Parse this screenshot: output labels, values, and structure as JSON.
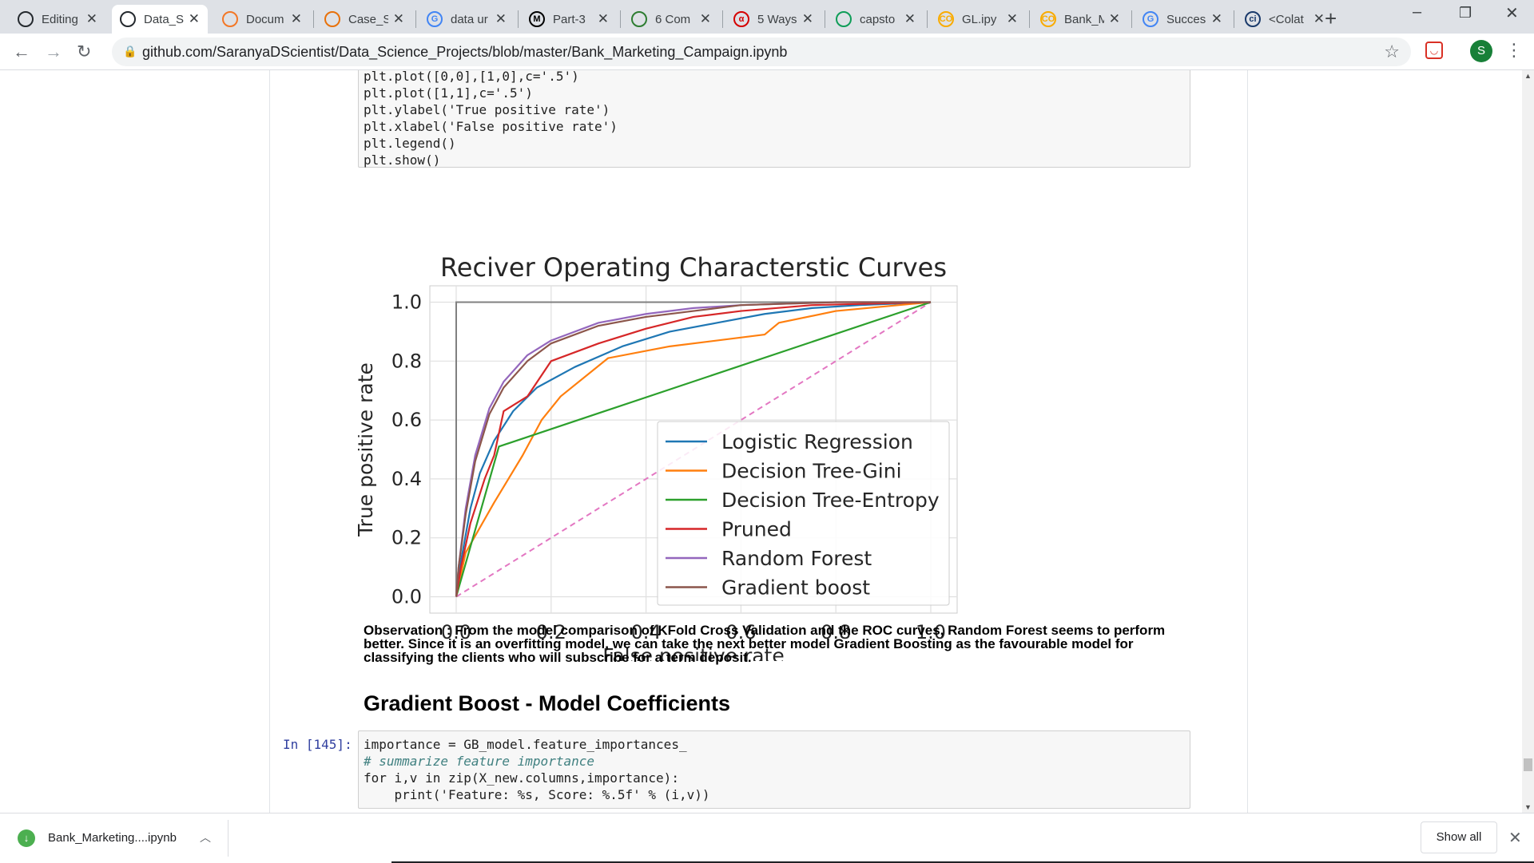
{
  "browser": {
    "tabs": [
      {
        "title": "Editing",
        "favicon": "github-icon",
        "fav_text": "",
        "fav_color": "#24292e"
      },
      {
        "title": "Data_S",
        "favicon": "github-icon",
        "fav_text": "",
        "fav_color": "#24292e",
        "active": true
      },
      {
        "title": "Docum",
        "favicon": "jupyter-icon",
        "fav_text": "",
        "fav_color": "#f37726"
      },
      {
        "title": "Case_S",
        "favicon": "book-icon",
        "fav_text": "",
        "fav_color": "#e8710a"
      },
      {
        "title": "data ur",
        "favicon": "google-icon",
        "fav_text": "G",
        "fav_color": "#4285f4"
      },
      {
        "title": "Part-3",
        "favicon": "medium-icon",
        "fav_text": "M",
        "fav_color": "#000000"
      },
      {
        "title": "6 Com",
        "favicon": "article-icon",
        "fav_text": "",
        "fav_color": "#2e7d32"
      },
      {
        "title": "5 Ways",
        "favicon": "alpha-icon",
        "fav_text": "α",
        "fav_color": "#d50000"
      },
      {
        "title": "capsto",
        "favicon": "drive-icon",
        "fav_text": "",
        "fav_color": "#0f9d58"
      },
      {
        "title": "GL.ipy",
        "favicon": "colab-icon",
        "fav_text": "CO",
        "fav_color": "#f9ab00"
      },
      {
        "title": "Bank_M",
        "favicon": "colab-icon",
        "fav_text": "CO",
        "fav_color": "#f9ab00"
      },
      {
        "title": "Succes",
        "favicon": "google-icon",
        "fav_text": "G",
        "fav_color": "#4285f4"
      },
      {
        "title": "<Colat",
        "favicon": "codeforces-icon",
        "fav_text": "ci",
        "fav_color": "#1a3a6b"
      }
    ],
    "url": "github.com/SaranyaDScientist/Data_Science_Projects/blob/master/Bank_Marketing_Campaign.ipynb",
    "profile_initial": "S"
  },
  "notebook": {
    "code_lines_top": [
      "plt.plot([0,0],[1,0],c='.5')",
      "plt.plot([1,1],c='.5')",
      "plt.ylabel('True positive rate')",
      "plt.xlabel('False positive rate')",
      "plt.legend()",
      "plt.show()"
    ],
    "observation": "Observation : From the model comparison of KFold Cross Validation and the ROC curves, Random Forest seems to perform better. Since it is an overfitting model, we can take the next better model Gradient Boosting as the favourable model for classifying the clients who will subscribe for a term deposit.",
    "section_heading": "Gradient Boost - Model Coefficients",
    "cell_prompt": "In [145]:",
    "code_lines_bottom": [
      "importance = GB_model.feature_importances_",
      "# summarize feature importance",
      "for i,v in zip(X_new.columns,importance):",
      "    print('Feature: %s, Score: %.5f' % (i,v))"
    ]
  },
  "chart_data": {
    "type": "line",
    "title": "Reciver Operating Characterstic Curves",
    "xlabel": "False positive rate",
    "ylabel": "True positive rate",
    "xlim": [
      0,
      1
    ],
    "ylim": [
      0,
      1
    ],
    "xticks": [
      "0.0",
      "0.2",
      "0.4",
      "0.6",
      "0.8",
      "1.0"
    ],
    "yticks": [
      "0.0",
      "0.2",
      "0.4",
      "0.6",
      "0.8",
      "1.0"
    ],
    "grid": true,
    "legend_position": "lower-right",
    "series": [
      {
        "name": "Logistic Regression",
        "color": "#1f77b4",
        "points": [
          [
            0,
            0
          ],
          [
            0.01,
            0.12
          ],
          [
            0.03,
            0.3
          ],
          [
            0.05,
            0.42
          ],
          [
            0.08,
            0.53
          ],
          [
            0.12,
            0.63
          ],
          [
            0.17,
            0.71
          ],
          [
            0.25,
            0.78
          ],
          [
            0.35,
            0.85
          ],
          [
            0.45,
            0.9
          ],
          [
            0.55,
            0.93
          ],
          [
            0.65,
            0.96
          ],
          [
            0.75,
            0.98
          ],
          [
            0.85,
            0.99
          ],
          [
            1,
            1
          ]
        ]
      },
      {
        "name": "Decision Tree-Gini",
        "color": "#ff7f0e",
        "points": [
          [
            0,
            0
          ],
          [
            0.02,
            0.15
          ],
          [
            0.08,
            0.32
          ],
          [
            0.14,
            0.48
          ],
          [
            0.18,
            0.6
          ],
          [
            0.22,
            0.68
          ],
          [
            0.32,
            0.81
          ],
          [
            0.45,
            0.85
          ],
          [
            0.65,
            0.89
          ],
          [
            0.68,
            0.93
          ],
          [
            0.8,
            0.97
          ],
          [
            1,
            1
          ]
        ]
      },
      {
        "name": "Decision Tree-Entropy",
        "color": "#2ca02c",
        "points": [
          [
            0,
            0
          ],
          [
            0.09,
            0.51
          ],
          [
            1,
            1
          ]
        ]
      },
      {
        "name": "Pruned",
        "color": "#d62728",
        "points": [
          [
            0,
            0
          ],
          [
            0.01,
            0.1
          ],
          [
            0.03,
            0.25
          ],
          [
            0.06,
            0.4
          ],
          [
            0.08,
            0.48
          ],
          [
            0.1,
            0.63
          ],
          [
            0.15,
            0.68
          ],
          [
            0.2,
            0.8
          ],
          [
            0.3,
            0.86
          ],
          [
            0.4,
            0.91
          ],
          [
            0.5,
            0.95
          ],
          [
            0.6,
            0.97
          ],
          [
            0.75,
            0.99
          ],
          [
            1,
            1
          ]
        ]
      },
      {
        "name": "Random Forest",
        "color": "#9467bd",
        "points": [
          [
            0,
            0
          ],
          [
            0.005,
            0.1
          ],
          [
            0.02,
            0.3
          ],
          [
            0.04,
            0.48
          ],
          [
            0.07,
            0.64
          ],
          [
            0.1,
            0.73
          ],
          [
            0.15,
            0.82
          ],
          [
            0.2,
            0.87
          ],
          [
            0.3,
            0.93
          ],
          [
            0.4,
            0.96
          ],
          [
            0.5,
            0.98
          ],
          [
            0.6,
            0.99
          ],
          [
            0.8,
            1
          ],
          [
            1,
            1
          ]
        ]
      },
      {
        "name": "Gradient boost",
        "color": "#8c564b",
        "points": [
          [
            0,
            0
          ],
          [
            0.005,
            0.1
          ],
          [
            0.02,
            0.28
          ],
          [
            0.04,
            0.46
          ],
          [
            0.07,
            0.62
          ],
          [
            0.1,
            0.71
          ],
          [
            0.15,
            0.8
          ],
          [
            0.2,
            0.86
          ],
          [
            0.3,
            0.92
          ],
          [
            0.4,
            0.95
          ],
          [
            0.5,
            0.97
          ],
          [
            0.6,
            0.99
          ],
          [
            0.8,
            1
          ],
          [
            1,
            1
          ]
        ]
      }
    ],
    "reference_lines": [
      {
        "label": "",
        "color": "#e377c2",
        "style": "dashed",
        "points": [
          [
            0,
            0
          ],
          [
            1,
            1
          ]
        ]
      },
      {
        "label": "",
        "color": "#808080",
        "style": "solid",
        "points": [
          [
            0,
            0
          ],
          [
            0,
            1
          ],
          [
            1,
            1
          ]
        ]
      }
    ]
  },
  "downloads": {
    "filename": "Bank_Marketing....ipynb",
    "show_all": "Show all"
  }
}
